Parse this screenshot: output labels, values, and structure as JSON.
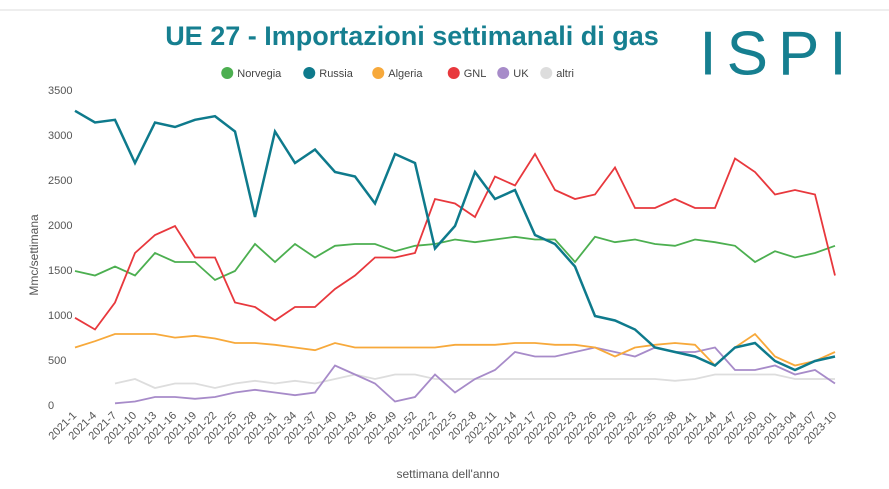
{
  "logo": "ISPI",
  "chart_data": {
    "type": "line",
    "title": "UE 27 - Importazioni settimanali di gas",
    "ylabel": "Mmc/settimana",
    "xlabel": "settimana dell'anno",
    "categories": [
      "2021-1",
      "2021-4",
      "2021-7",
      "2021-10",
      "2021-13",
      "2021-16",
      "2021-19",
      "2021-22",
      "2021-25",
      "2021-28",
      "2021-31",
      "2021-34",
      "2021-37",
      "2021-40",
      "2021-43",
      "2021-46",
      "2021-49",
      "2021-52",
      "2022-2",
      "2022-5",
      "2022-8",
      "2022-11",
      "2022-14",
      "2022-17",
      "2022-20",
      "2022-23",
      "2022-26",
      "2022-29",
      "2022-32",
      "2022-35",
      "2022-38",
      "2022-41",
      "2022-44",
      "2022-47",
      "2022-50",
      "2023-01",
      "2023-04",
      "2023-07",
      "2023-10"
    ],
    "ylim": [
      0,
      3500
    ],
    "yticks": [
      0,
      500,
      1000,
      1500,
      2000,
      2500,
      3000,
      3500
    ],
    "legend": "top",
    "series": [
      {
        "name": "Norvegia",
        "color": "#4caf50",
        "values": [
          1500,
          1450,
          1550,
          1450,
          1700,
          1600,
          1600,
          1400,
          1500,
          1800,
          1600,
          1800,
          1650,
          1780,
          1800,
          1800,
          1720,
          1780,
          1800,
          1850,
          1820,
          1850,
          1880,
          1850,
          1850,
          1600,
          1880,
          1820,
          1850,
          1800,
          1780,
          1850,
          1820,
          1780,
          1600,
          1720,
          1650,
          1700,
          1780
        ]
      },
      {
        "name": "Russia",
        "color": "#0e7a8c",
        "values": [
          3280,
          3150,
          3180,
          2700,
          3150,
          3100,
          3180,
          3220,
          3050,
          2100,
          3050,
          2700,
          2850,
          2600,
          2550,
          2250,
          2800,
          2700,
          1750,
          2000,
          2600,
          2300,
          2400,
          1900,
          1800,
          1550,
          1000,
          950,
          850,
          650,
          600,
          550,
          450,
          650,
          700,
          500,
          400,
          500,
          550
        ]
      },
      {
        "name": "Algeria",
        "color": "#f7a93b",
        "values": [
          650,
          720,
          800,
          800,
          800,
          760,
          780,
          750,
          700,
          700,
          680,
          650,
          620,
          700,
          650,
          650,
          650,
          650,
          650,
          680,
          680,
          680,
          700,
          700,
          680,
          680,
          650,
          550,
          650,
          680,
          700,
          680,
          450,
          650,
          800,
          550,
          450,
          500,
          600
        ]
      },
      {
        "name": "GNL",
        "color": "#e8383d",
        "values": [
          980,
          850,
          1150,
          1700,
          1900,
          2000,
          1650,
          1650,
          1150,
          1100,
          950,
          1100,
          1100,
          1300,
          1450,
          1650,
          1650,
          1700,
          2300,
          2250,
          2100,
          2550,
          2450,
          2800,
          2400,
          2300,
          2350,
          2650,
          2200,
          2200,
          2300,
          2200,
          2200,
          2750,
          2600,
          2350,
          2400,
          2350,
          1450
        ]
      },
      {
        "name": "UK",
        "color": "#a78bc9",
        "values": [
          null,
          null,
          30,
          50,
          100,
          100,
          80,
          100,
          150,
          180,
          150,
          120,
          150,
          450,
          350,
          250,
          50,
          100,
          350,
          150,
          300,
          400,
          600,
          550,
          550,
          600,
          650,
          600,
          550,
          650,
          600,
          600,
          650,
          400,
          400,
          450,
          350,
          400,
          250
        ]
      },
      {
        "name": "altri",
        "color": "#dddddd",
        "values": [
          null,
          null,
          250,
          300,
          200,
          250,
          250,
          200,
          250,
          280,
          250,
          280,
          250,
          300,
          350,
          300,
          350,
          350,
          300,
          300,
          300,
          300,
          300,
          300,
          300,
          300,
          300,
          300,
          300,
          300,
          280,
          300,
          350,
          350,
          350,
          350,
          300,
          300,
          300
        ]
      }
    ]
  }
}
